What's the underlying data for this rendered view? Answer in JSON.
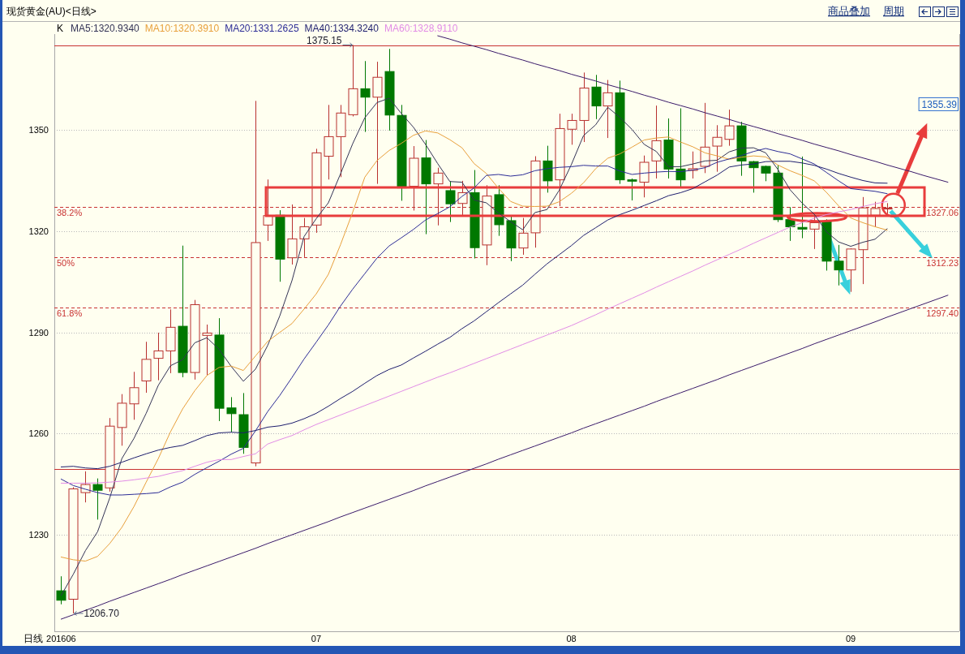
{
  "chart_data": {
    "type": "candlestick",
    "title": "现货黄金(AU)<日线>",
    "xlabel": "日线",
    "legend_title": "K",
    "legend": "top left",
    "grid": "y",
    "categories": [
      "201606",
      null,
      null,
      null,
      null,
      null,
      null,
      null,
      null,
      null,
      null,
      null,
      null,
      null,
      null,
      null,
      null,
      null,
      null,
      null,
      null,
      "07",
      null,
      null,
      null,
      null,
      null,
      null,
      null,
      null,
      null,
      null,
      null,
      null,
      null,
      null,
      null,
      null,
      null,
      null,
      null,
      null,
      "08",
      null,
      null,
      null,
      null,
      null,
      null,
      null,
      null,
      null,
      null,
      null,
      null,
      null,
      null,
      null,
      null,
      null,
      null,
      null,
      null,
      null,
      null,
      "09",
      null,
      null,
      null,
      null,
      null,
      null,
      null,
      null
    ],
    "ylim": [
      1201.4,
      1378.4
    ],
    "yticks": [
      1230,
      1260,
      1290,
      1320,
      1350
    ],
    "ohlc": [
      [
        1213.4,
        1217.7,
        1209.4,
        1210.6
      ],
      [
        1210.9,
        1244.1,
        1206.7,
        1243.6
      ],
      [
        1242.5,
        1248.8,
        1239.6,
        1244.9
      ],
      [
        1244.9,
        1246.7,
        1234.5,
        1243.2
      ],
      [
        1243.9,
        1264.6,
        1242.8,
        1262.2
      ],
      [
        1261.8,
        1271.7,
        1256.4,
        1269.0
      ],
      [
        1268.8,
        1278.3,
        1264.1,
        1273.6
      ],
      [
        1275.6,
        1287.2,
        1272.1,
        1282.0
      ],
      [
        1282.3,
        1289.9,
        1275.8,
        1284.5
      ],
      [
        1284.5,
        1296.8,
        1277.9,
        1291.5
      ],
      [
        1291.8,
        1315.7,
        1276.7,
        1278.1
      ],
      [
        1278.1,
        1299.6,
        1276.0,
        1298.2
      ],
      [
        1289.1,
        1292.3,
        1277.3,
        1289.8
      ],
      [
        1289.2,
        1294.2,
        1263.7,
        1267.5
      ],
      [
        1267.6,
        1270.8,
        1260.4,
        1265.9
      ],
      [
        1265.6,
        1272.0,
        1254.0,
        1255.9
      ],
      [
        1251.3,
        1358.6,
        1250.3,
        1316.6
      ],
      [
        1321.8,
        1335.3,
        1317.1,
        1324.6
      ],
      [
        1324.7,
        1326.2,
        1305.0,
        1311.7
      ],
      [
        1312.1,
        1327.9,
        1310.1,
        1317.7
      ],
      [
        1317.7,
        1323.9,
        1312.3,
        1321.3
      ],
      [
        1321.8,
        1344.4,
        1319.5,
        1343.2
      ],
      [
        1342.2,
        1357.4,
        1335.3,
        1348.0
      ],
      [
        1348.0,
        1357.4,
        1336.0,
        1355.0
      ],
      [
        1354.5,
        1375.15,
        1354.0,
        1362.2
      ],
      [
        1362.2,
        1370.4,
        1349.4,
        1359.7
      ],
      [
        1359.7,
        1370.2,
        1334.0,
        1365.6
      ],
      [
        1367.3,
        1374.0,
        1349.8,
        1354.4
      ],
      [
        1354.3,
        1357.4,
        1329.0,
        1332.8
      ],
      [
        1333.3,
        1345.2,
        1326.1,
        1341.6
      ],
      [
        1341.7,
        1347.0,
        1319.1,
        1334.0
      ],
      [
        1334.0,
        1338.8,
        1321.7,
        1337.2
      ],
      [
        1332.0,
        1334.8,
        1322.7,
        1328.1
      ],
      [
        1328.2,
        1334.9,
        1324.3,
        1331.4
      ],
      [
        1331.4,
        1338.1,
        1311.9,
        1315.1
      ],
      [
        1315.9,
        1333.6,
        1309.9,
        1330.4
      ],
      [
        1330.8,
        1333.6,
        1318.6,
        1321.9
      ],
      [
        1323.1,
        1324.3,
        1311.1,
        1315.0
      ],
      [
        1315.0,
        1323.9,
        1313.0,
        1319.4
      ],
      [
        1319.5,
        1342.2,
        1315.1,
        1340.8
      ],
      [
        1340.8,
        1345.3,
        1331.4,
        1334.9
      ],
      [
        1335.2,
        1354.8,
        1327.4,
        1350.4
      ],
      [
        1350.2,
        1354.8,
        1345.6,
        1352.8
      ],
      [
        1352.8,
        1367.0,
        1346.4,
        1362.4
      ],
      [
        1362.7,
        1366.3,
        1353.2,
        1357.1
      ],
      [
        1357.1,
        1364.8,
        1347.6,
        1361.0
      ],
      [
        1361.0,
        1364.6,
        1334.0,
        1335.2
      ],
      [
        1335.2,
        1335.6,
        1329.1,
        1334.8
      ],
      [
        1334.5,
        1342.4,
        1330.0,
        1340.4
      ],
      [
        1340.8,
        1357.2,
        1335.6,
        1346.8
      ],
      [
        1347.0,
        1353.4,
        1335.6,
        1338.4
      ],
      [
        1338.4,
        1356.4,
        1332.8,
        1335.2
      ],
      [
        1338.0,
        1343.6,
        1335.6,
        1338.5
      ],
      [
        1339.2,
        1358.0,
        1337.2,
        1344.9
      ],
      [
        1345.2,
        1351.4,
        1337.6,
        1347.8
      ],
      [
        1347.2,
        1356.0,
        1345.3,
        1351.2
      ],
      [
        1351.2,
        1352.4,
        1336.4,
        1340.8
      ],
      [
        1340.6,
        1340.8,
        1331.4,
        1338.8
      ],
      [
        1339.2,
        1339.4,
        1334.8,
        1337.2
      ],
      [
        1337.2,
        1339.6,
        1322.7,
        1323.4
      ],
      [
        1323.4,
        1327.1,
        1317.1,
        1321.3
      ],
      [
        1321.1,
        1342.1,
        1317.9,
        1320.6
      ],
      [
        1320.6,
        1324.7,
        1314.7,
        1322.5
      ],
      [
        1322.9,
        1323.5,
        1308.3,
        1311.1
      ],
      [
        1311.1,
        1315.9,
        1303.9,
        1308.5
      ],
      [
        1308.5,
        1314.9,
        1302.0,
        1314.7
      ],
      [
        1314.5,
        1330.1,
        1304.3,
        1326.9
      ],
      [
        1324.7,
        1328.7,
        1321.3,
        1326.7
      ],
      [
        1326.6,
        1328.3,
        1325.1,
        1326.8
      ],
      null,
      null,
      null,
      null,
      null
    ],
    "colors": [
      "#007800",
      "#b8312f",
      "#b8312f",
      "#007800",
      "#b8312f",
      "#b8312f",
      "#b8312f",
      "#b8312f",
      "#b8312f",
      "#b8312f",
      "#007800",
      "#b8312f",
      "#b8312f",
      "#007800",
      "#007800",
      "#007800",
      "#b8312f",
      "#b8312f",
      "#007800",
      "#b8312f",
      "#b8312f",
      "#b8312f",
      "#b8312f",
      "#b8312f",
      "#b8312f",
      "#007800",
      "#b8312f",
      "#007800",
      "#007800",
      "#b8312f",
      "#007800",
      "#b8312f",
      "#007800",
      "#b8312f",
      "#007800",
      "#b8312f",
      "#007800",
      "#007800",
      "#b8312f",
      "#b8312f",
      "#007800",
      "#b8312f",
      "#b8312f",
      "#b8312f",
      "#007800",
      "#b8312f",
      "#007800",
      "#007800",
      "#b8312f",
      "#b8312f",
      "#007800",
      "#007800",
      "#b8312f",
      "#b8312f",
      "#b8312f",
      "#b8312f",
      "#007800",
      "#007800",
      "#007800",
      "#007800",
      "#007800",
      "#007800",
      "#b8312f",
      "#007800",
      "#007800",
      "#b8312f",
      "#b8312f",
      "#b8312f",
      "#b8312f",
      null,
      null,
      null,
      null,
      null
    ],
    "series": [
      {
        "name": "MA5:1320.9340",
        "type": "line",
        "color": "#333355",
        "values": [
          1212.0,
          1218.3,
          1225.3,
          1230.9,
          1240.9,
          1252.6,
          1258.6,
          1266.0,
          1274.3,
          1280.1,
          1281.9,
          1286.9,
          1288.4,
          1285.0,
          1279.9,
          1275.5,
          1279.1,
          1286.1,
          1294.9,
          1305.3,
          1318.4,
          1323.7,
          1328.4,
          1337.0,
          1345.9,
          1353.6,
          1358.1,
          1359.4,
          1354.9,
          1350.8,
          1345.7,
          1340.0,
          1334.7,
          1334.5,
          1329.2,
          1328.4,
          1325.4,
          1322.8,
          1320.4,
          1325.5,
          1326.4,
          1332.1,
          1339.7,
          1348.3,
          1351.5,
          1356.7,
          1353.7,
          1350.1,
          1345.7,
          1343.6,
          1339.1,
          1339.1,
          1339.9,
          1340.8,
          1341.0,
          1343.5,
          1344.6,
          1344.7,
          1343.2,
          1338.3,
          1332.3,
          1328.3,
          1325.0,
          1319.8,
          1316.8,
          1315.5,
          1316.7,
          1317.6,
          1320.7,
          null,
          null,
          null,
          null,
          null
        ]
      },
      {
        "name": "MA10:1320.3910",
        "type": "line",
        "color": "#e8a03c",
        "values": [
          1223.4,
          1222.6,
          1222.2,
          1223.6,
          1227.4,
          1232.2,
          1238.4,
          1245.6,
          1252.6,
          1260.5,
          1267.3,
          1272.7,
          1277.2,
          1279.6,
          1280.0,
          1278.7,
          1283.0,
          1287.3,
          1290.0,
          1292.6,
          1296.9,
          1301.4,
          1307.2,
          1316.0,
          1325.6,
          1336.0,
          1340.9,
          1343.9,
          1346.0,
          1348.4,
          1349.7,
          1349.1,
          1347.1,
          1344.7,
          1340.0,
          1337.1,
          1332.7,
          1328.8,
          1327.4,
          1327.3,
          1327.4,
          1328.7,
          1331.2,
          1334.3,
          1338.5,
          1341.6,
          1342.9,
          1344.9,
          1347.0,
          1347.6,
          1347.9,
          1346.4,
          1345.0,
          1343.2,
          1342.3,
          1341.3,
          1341.9,
          1342.3,
          1342.0,
          1339.6,
          1337.9,
          1336.5,
          1334.9,
          1331.5,
          1327.5,
          1323.9,
          1322.5,
          1321.3,
          1320.3,
          null,
          null,
          null,
          null,
          null
        ]
      },
      {
        "name": "MA20:1331.2625",
        "type": "line",
        "color": "#2c2c96",
        "values": [
          1246.5,
          1244.6,
          1243.5,
          1242.5,
          1241.8,
          1241.8,
          1242.0,
          1242.2,
          1242.5,
          1244.2,
          1245.6,
          1247.9,
          1249.9,
          1251.8,
          1253.9,
          1255.6,
          1260.8,
          1266.5,
          1271.3,
          1276.6,
          1282.1,
          1287.1,
          1292.2,
          1297.8,
          1302.8,
          1307.4,
          1312.0,
          1315.6,
          1318.0,
          1320.5,
          1323.3,
          1325.2,
          1327.2,
          1330.3,
          1332.8,
          1336.5,
          1336.8,
          1336.3,
          1336.7,
          1337.9,
          1338.5,
          1338.9,
          1339.1,
          1339.5,
          1339.3,
          1339.3,
          1337.8,
          1336.8,
          1337.2,
          1337.5,
          1337.7,
          1337.6,
          1338.1,
          1338.8,
          1340.4,
          1341.4,
          1342.4,
          1343.6,
          1344.5,
          1343.6,
          1342.9,
          1341.4,
          1339.9,
          1337.4,
          1334.9,
          1332.6,
          1332.2,
          1331.8,
          1331.1,
          null,
          null,
          null,
          null,
          null
        ]
      },
      {
        "name": "MA40:1334.3240",
        "type": "line",
        "color": "#1e1e6e",
        "values": [
          1250.1,
          1250.3,
          1249.8,
          1249.6,
          1250.3,
          1251.5,
          1252.8,
          1254.0,
          1255.1,
          1255.9,
          1256.5,
          1257.9,
          1259.4,
          1260.2,
          1260.4,
          1260.2,
          1260.9,
          1261.9,
          1262.3,
          1263.1,
          1264.4,
          1266.0,
          1268.1,
          1270.4,
          1272.5,
          1274.9,
          1277.2,
          1279.0,
          1280.3,
          1282.4,
          1284.4,
          1286.5,
          1288.5,
          1291.1,
          1293.4,
          1296.1,
          1298.8,
          1301.4,
          1304.0,
          1307.2,
          1310.3,
          1313.0,
          1315.7,
          1318.7,
          1321.0,
          1323.3,
          1324.9,
          1326.2,
          1327.6,
          1329.0,
          1330.5,
          1331.4,
          1332.6,
          1334.6,
          1336.6,
          1339.0,
          1339.6,
          1339.9,
          1340.6,
          1340.7,
          1340.7,
          1340.2,
          1339.5,
          1338.4,
          1337.1,
          1336.0,
          1335.0,
          1334.3,
          1334.2,
          null,
          null,
          null,
          null,
          null
        ]
      },
      {
        "name": "MA60:1328.9110",
        "type": "line",
        "color": "#e28ce6",
        "values": [
          1245.3,
          1245.3,
          1245.3,
          1245.4,
          1245.6,
          1245.9,
          1246.3,
          1246.8,
          1247.3,
          1248.2,
          1249.0,
          1250.3,
          1251.5,
          1252.3,
          1252.3,
          1253.2,
          1254.0,
          1256.9,
          1258.2,
          1259.4,
          1261.1,
          1262.7,
          1264.1,
          1265.5,
          1266.9,
          1268.3,
          1269.7,
          1271.1,
          1272.5,
          1273.9,
          1275.3,
          1276.7,
          1278.0,
          1279.4,
          1280.8,
          1282.2,
          1283.6,
          1285.0,
          1286.4,
          1287.8,
          1289.2,
          1290.6,
          1292.0,
          1293.6,
          1295.2,
          1296.9,
          1298.5,
          1300.1,
          1301.7,
          1303.4,
          1305.0,
          1306.6,
          1308.2,
          1309.9,
          1311.5,
          1313.1,
          1314.7,
          1316.4,
          1318.0,
          1319.6,
          1321.2,
          1322.5,
          1323.8,
          1324.9,
          1325.7,
          1326.4,
          1327.3,
          1328.1,
          1328.8,
          null,
          null,
          null,
          null,
          null
        ]
      },
      {
        "type": "line",
        "color": "#3a1a6a",
        "values": [
          null,
          null,
          null,
          null,
          null,
          null,
          null,
          null,
          null,
          null,
          null,
          null,
          null,
          null,
          null,
          null,
          null,
          null,
          null,
          null,
          null,
          null,
          null,
          null,
          null,
          null,
          null,
          null,
          null,
          null,
          null,
          1377.9,
          1376.9,
          1375.8,
          1374.8,
          1373.8,
          1372.7,
          1371.7,
          1370.7,
          1369.6,
          1368.6,
          1367.6,
          1366.5,
          1365.5,
          1364.5,
          1363.4,
          1362.4,
          1361.4,
          1360.3,
          1359.3,
          1358.2,
          1357.2,
          1356.2,
          1355.1,
          1354.1,
          1353.1,
          1352.0,
          1351.0,
          1350.0,
          1348.9,
          1347.9,
          1346.9,
          1345.8,
          1344.8,
          1343.8,
          1342.7,
          1341.7,
          1340.7,
          1339.6,
          1338.6,
          1337.6,
          1336.5,
          1335.5,
          1334.5
        ]
      },
      {
        "type": "line",
        "color": "#3a1a6a",
        "values": [
          1205.0,
          1206.3,
          1207.6,
          1208.9,
          1210.3,
          1211.6,
          1212.9,
          1214.2,
          1215.5,
          1216.8,
          1218.2,
          1219.5,
          1220.8,
          1222.1,
          1223.4,
          1224.7,
          1226.0,
          1227.4,
          1228.7,
          1230.0,
          1231.3,
          1232.6,
          1233.9,
          1235.3,
          1236.6,
          1237.9,
          1239.2,
          1240.5,
          1241.8,
          1243.1,
          1244.5,
          1245.8,
          1247.1,
          1248.4,
          1249.7,
          1251.0,
          1252.4,
          1253.7,
          1255.0,
          1256.3,
          1257.6,
          1258.9,
          1260.2,
          1261.6,
          1262.9,
          1264.2,
          1265.5,
          1266.8,
          1268.1,
          1269.5,
          1270.8,
          1272.1,
          1273.4,
          1274.7,
          1276.0,
          1277.4,
          1278.7,
          1280.0,
          1281.3,
          1282.6,
          1283.9,
          1285.2,
          1286.6,
          1287.9,
          1289.2,
          1290.5,
          1291.8,
          1293.1,
          1294.5,
          1295.8,
          1297.1,
          1298.4,
          1299.7,
          1301.0
        ]
      }
    ],
    "ref_lines": [
      {
        "axis": "y",
        "value": 1375.15,
        "color": "#c83232"
      },
      {
        "axis": "y",
        "value": 1249.6,
        "color": "#c83232"
      },
      {
        "axis": "y",
        "value": 1327.06,
        "label": "1327.06",
        "color": "#c83232",
        "line_style": "dashed"
      },
      {
        "axis": "y",
        "value": 1312.23,
        "label": "1312.23",
        "color": "#c83232",
        "line_style": "dashed"
      },
      {
        "axis": "y",
        "value": 1297.4,
        "label": "1297.40",
        "color": "#c83232",
        "line_style": "dashed"
      }
    ],
    "annotations": [
      "商品叠加",
      "周期",
      "1355.39",
      "1206.70",
      {
        "text": "1375.15",
        "y": 1375.15
      },
      {
        "text": "38.2%",
        "y": 1327.06
      },
      {
        "text": "50%",
        "y": 1312.23
      },
      {
        "text": "61.8%",
        "y": 1297.4
      }
    ]
  }
}
